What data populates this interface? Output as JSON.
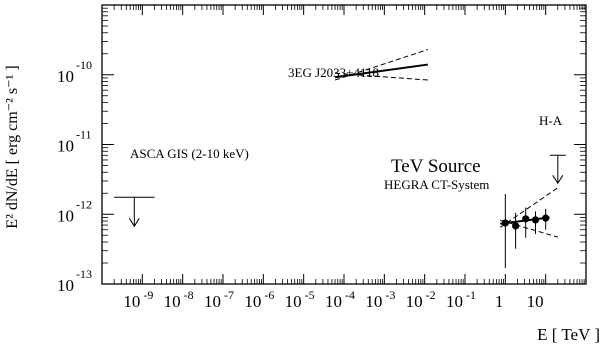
{
  "chart_data": {
    "type": "scatter",
    "title": "",
    "xlabel": "E [ TeV ]",
    "ylabel": "E² dN/dE [ erg cm⁻² s⁻¹ ]",
    "xscale": "log",
    "yscale": "log",
    "xlim": [
      1e-10,
      100
    ],
    "ylim": [
      1e-13,
      1e-09
    ],
    "grid": false,
    "x_ticks": [
      {
        "base": "10",
        "exp": "-9",
        "value": 1e-09
      },
      {
        "base": "10",
        "exp": "-8",
        "value": 1e-08
      },
      {
        "base": "10",
        "exp": "-7",
        "value": 1e-07
      },
      {
        "base": "10",
        "exp": "-6",
        "value": 1e-06
      },
      {
        "base": "10",
        "exp": "-5",
        "value": 1e-05
      },
      {
        "base": "10",
        "exp": "-4",
        "value": 0.0001
      },
      {
        "base": "10",
        "exp": "-3",
        "value": 0.001
      },
      {
        "base": "10",
        "exp": "-2",
        "value": 0.01
      },
      {
        "base": "10",
        "exp": "-1",
        "value": 0.1
      },
      {
        "base": "1",
        "exp": "",
        "value": 1
      },
      {
        "base": "10",
        "exp": "",
        "value": 10
      }
    ],
    "y_ticks": [
      {
        "base": "10",
        "exp": "-10",
        "value": 1e-10
      },
      {
        "base": "10",
        "exp": "-11",
        "value": 1e-11
      },
      {
        "base": "10",
        "exp": "-12",
        "value": 1e-12
      },
      {
        "base": "10",
        "exp": "-13",
        "value": 1e-13
      }
    ],
    "annotations": {
      "egret": "3EG J2033+4118",
      "asca": "ASCA GIS (2-10 keV)",
      "tev_source": "TeV Source",
      "hegra": "HEGRA CT-System",
      "ha": "H-A"
    },
    "egret": {
      "fit": [
        [
          6e-05,
          9.2e-11
        ],
        [
          0.012,
          1.4e-10
        ]
      ],
      "band_upper": [
        [
          6e-05,
          8.4e-11
        ],
        [
          0.012,
          2.3e-10
        ]
      ],
      "band_lower": [
        [
          6e-05,
          1.05e-10
        ],
        [
          0.012,
          8.4e-11
        ]
      ]
    },
    "asca_upper_limit": {
      "x_range": [
        2e-10,
        2e-09
      ],
      "y": 1.75e-12
    },
    "hegra_points": [
      {
        "x": 1.0,
        "y": 7.5e-13,
        "y_low": 1.7e-13,
        "y_high": 1.95e-12
      },
      {
        "x": 1.8,
        "y": 6.8e-13,
        "y_low": 3.2e-13,
        "y_high": 1.05e-12
      },
      {
        "x": 3.2,
        "y": 8.6e-13,
        "y_low": 4.6e-13,
        "y_high": 1.25e-12
      },
      {
        "x": 5.6,
        "y": 8.3e-13,
        "y_low": 5.2e-13,
        "y_high": 1.1e-12
      },
      {
        "x": 10.0,
        "y": 8.8e-13,
        "y_low": 6e-13,
        "y_high": 1.2e-12
      }
    ],
    "hegra_fit": [
      [
        0.75,
        7.3e-13
      ],
      [
        12.5,
        9e-13
      ]
    ],
    "hegra_band_upper": [
      [
        0.75,
        6.5e-13
      ],
      [
        20,
        2.4e-12
      ]
    ],
    "hegra_band_lower": [
      [
        0.75,
        8.2e-13
      ],
      [
        20,
        4.7e-13
      ]
    ],
    "ha_upper_limit": {
      "x": 20,
      "y": 7e-12
    }
  }
}
